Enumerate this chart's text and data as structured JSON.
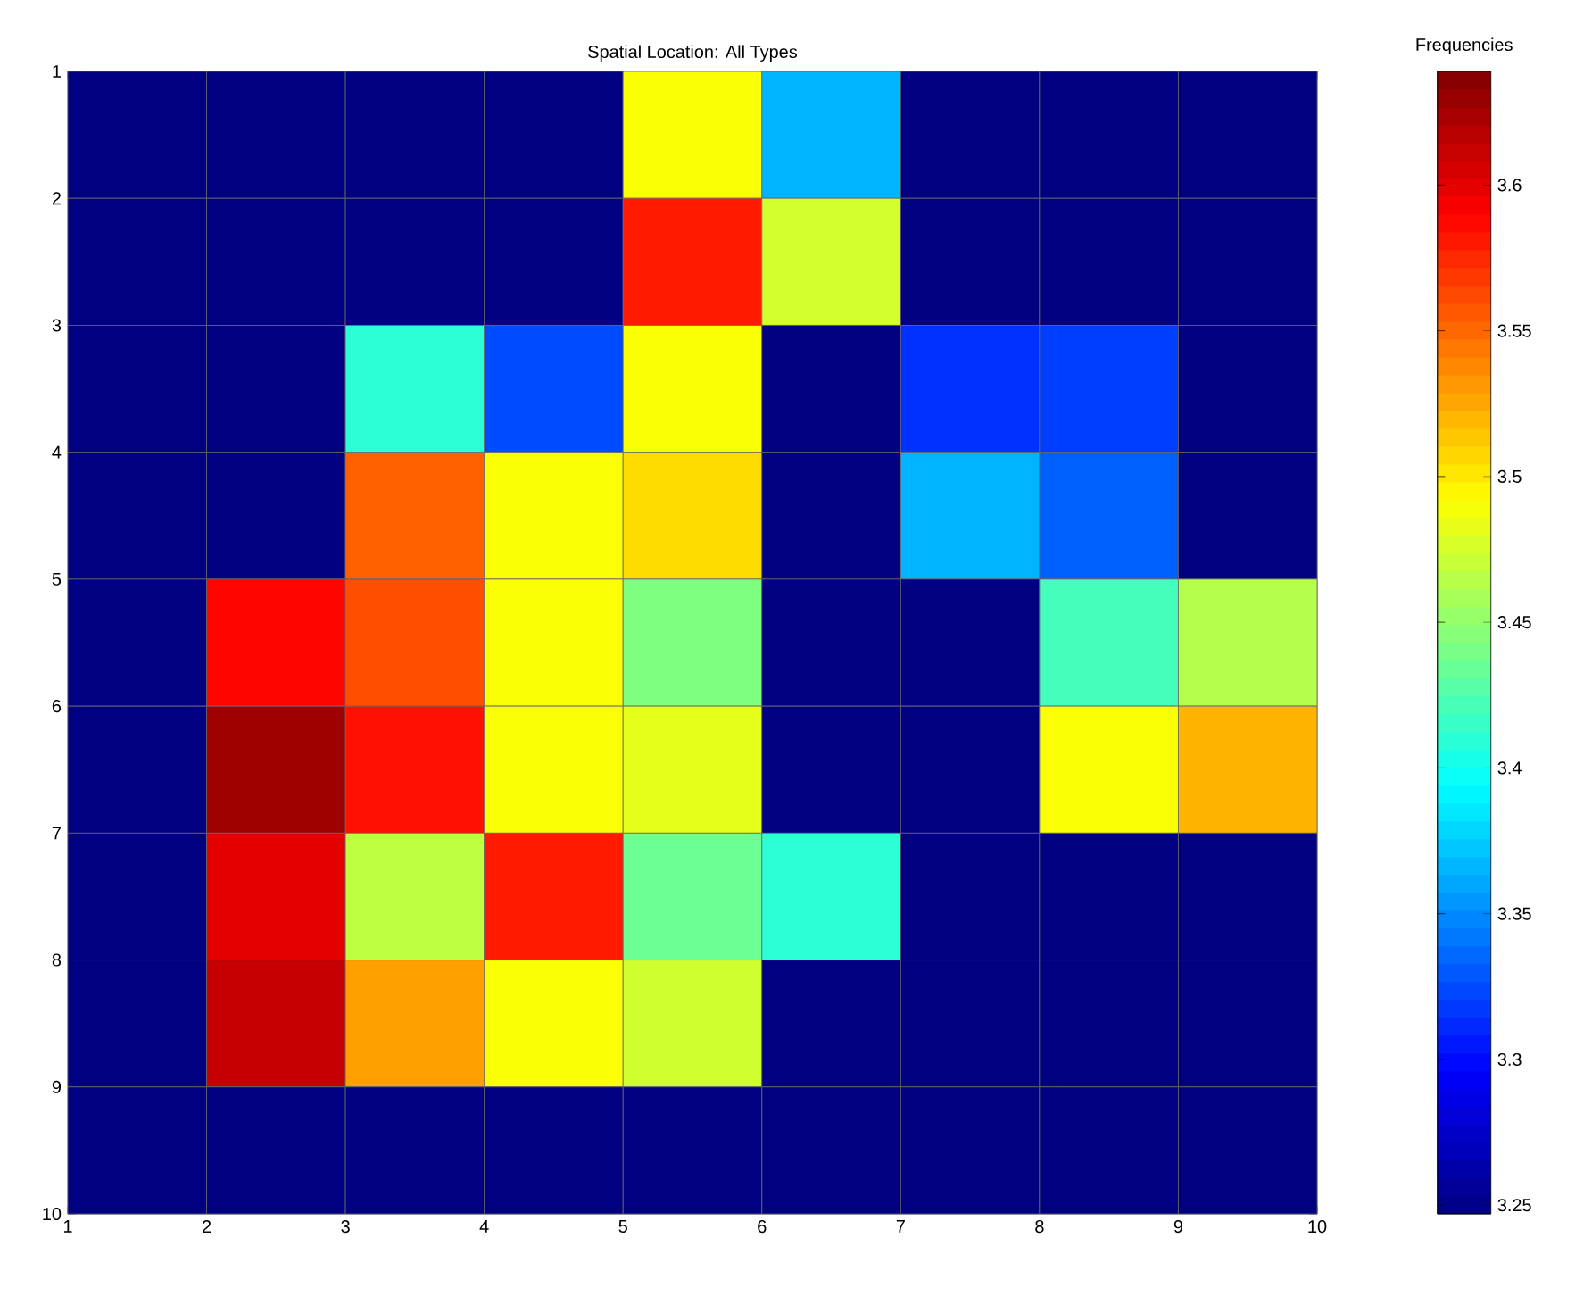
{
  "chart_data": {
    "type": "heatmap",
    "title": "Spatial Location: All Types",
    "clabel": "Frequencies",
    "xlim": [
      1,
      10
    ],
    "xticks": [
      1,
      2,
      3,
      4,
      5,
      6,
      7,
      8,
      9,
      10
    ],
    "ylim": [
      10,
      1
    ],
    "yticks": [
      1,
      2,
      3,
      4,
      5,
      6,
      7,
      8,
      9,
      10
    ],
    "cells": [
      [
        3.247,
        3.247,
        3.247,
        3.247,
        3.49,
        3.365,
        3.247,
        3.247,
        3.247
      ],
      [
        3.247,
        3.247,
        3.247,
        3.247,
        3.58,
        3.475,
        3.247,
        3.247,
        3.247
      ],
      [
        3.247,
        3.247,
        3.41,
        3.325,
        3.49,
        3.247,
        3.315,
        3.32,
        3.247
      ],
      [
        3.247,
        3.247,
        3.553,
        3.49,
        3.506,
        3.247,
        3.365,
        3.333,
        3.247
      ],
      [
        3.247,
        3.588,
        3.56,
        3.49,
        3.443,
        3.247,
        3.247,
        3.42,
        3.463
      ],
      [
        3.247,
        3.627,
        3.584,
        3.49,
        3.482,
        3.247,
        3.247,
        3.49,
        3.521
      ],
      [
        3.247,
        3.6,
        3.467,
        3.58,
        3.435,
        3.41,
        3.247,
        3.247,
        3.247
      ],
      [
        3.247,
        3.612,
        3.529,
        3.49,
        3.474,
        3.247,
        3.247,
        3.247,
        3.247
      ],
      [
        3.247,
        3.247,
        3.247,
        3.247,
        3.247,
        3.247,
        3.247,
        3.247,
        3.247
      ]
    ],
    "clim": [
      3.247,
      3.639
    ],
    "cticks": [
      3.25,
      3.3,
      3.35,
      3.4,
      3.45,
      3.5,
      3.55,
      3.6
    ]
  }
}
